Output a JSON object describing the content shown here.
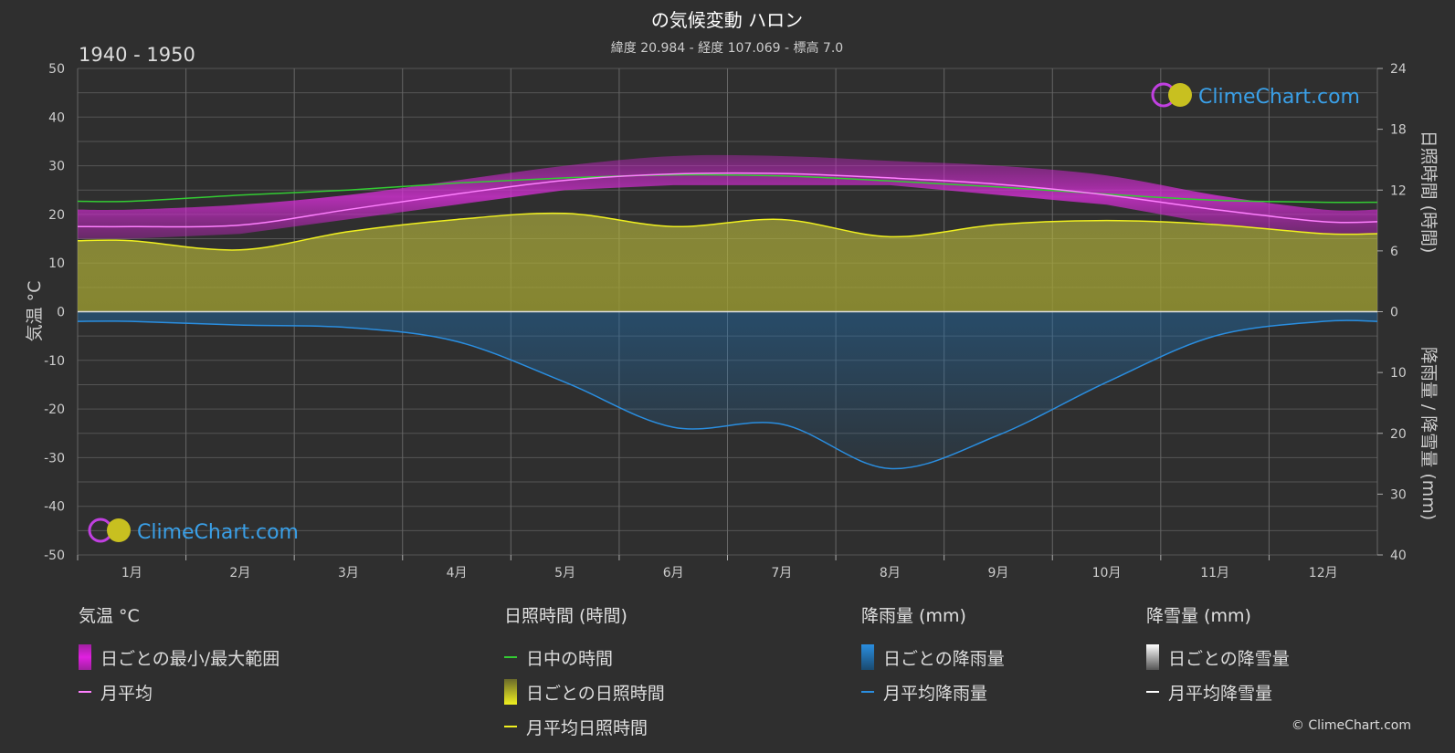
{
  "header": {
    "title": "の気候変動 ハロン",
    "subtitle": "緯度 20.984 - 経度 107.069 - 標高 7.0",
    "period": "1940 - 1950"
  },
  "watermark": "ClimeChart.com",
  "copyright": "© ClimeChart.com",
  "colors": {
    "background": "#2f2f2f",
    "temp_range": "#e020e0",
    "temp_avg": "#ff80ff",
    "daylight": "#33cc33",
    "sunshine_fill": "#b5b53a",
    "sunshine_avg": "#f0f020",
    "rain_fill": "#1f6fb0",
    "rain_avg": "#2a8ee0",
    "snow": "#ffffff"
  },
  "chart_data": {
    "type": "line",
    "categories": [
      "1月",
      "2月",
      "3月",
      "4月",
      "5月",
      "6月",
      "7月",
      "8月",
      "9月",
      "10月",
      "11月",
      "12月"
    ],
    "axes": {
      "left": {
        "label": "気温 °C",
        "ticks": [
          50,
          40,
          30,
          20,
          10,
          0,
          -10,
          -20,
          -30,
          -40,
          -50
        ],
        "range": [
          -50,
          50
        ]
      },
      "right_top": {
        "label": "日照時間 (時間)",
        "ticks": [
          24,
          18,
          12,
          6,
          0
        ],
        "range": [
          0,
          24
        ]
      },
      "right_bottom": {
        "label": "降雨量 / 降雪量 (mm)",
        "ticks": [
          0,
          10,
          20,
          30,
          40
        ],
        "range": [
          0,
          40
        ]
      }
    },
    "series": [
      {
        "name": "日中の時間",
        "unit": "時間",
        "values": [
          10.9,
          11.5,
          12.0,
          12.7,
          13.2,
          13.5,
          13.4,
          12.9,
          12.3,
          11.6,
          11.0,
          10.8
        ]
      },
      {
        "name": "月平均日照時間",
        "unit": "時間",
        "values": [
          7.0,
          6.1,
          7.9,
          9.1,
          9.7,
          8.4,
          9.1,
          7.4,
          8.6,
          9.0,
          8.6,
          7.7
        ]
      },
      {
        "name": "月平均",
        "unit": "°C",
        "values": [
          17.5,
          17.8,
          21.0,
          24.2,
          27.0,
          28.3,
          28.4,
          27.5,
          26.2,
          24.0,
          21.0,
          18.5
        ]
      },
      {
        "name": "日ごとの最小/最大範囲 (最小)",
        "unit": "°C",
        "values": [
          15,
          16,
          19,
          22,
          25,
          26,
          26,
          26,
          24,
          22,
          18,
          16
        ]
      },
      {
        "name": "日ごとの最小/最大範囲 (最大)",
        "unit": "°C",
        "values": [
          21,
          22,
          24,
          27,
          30,
          32,
          32,
          31,
          30,
          28,
          24,
          21
        ]
      },
      {
        "name": "月平均降雨量",
        "unit": "mm",
        "values": [
          1.6,
          2.2,
          2.6,
          4.9,
          11.6,
          19.0,
          18.5,
          25.8,
          20.3,
          11.6,
          4.0,
          1.6
        ]
      },
      {
        "name": "月平均降雪量",
        "unit": "mm",
        "values": [
          0,
          0,
          0,
          0,
          0,
          0,
          0,
          0,
          0,
          0,
          0,
          0
        ]
      }
    ],
    "grid": true
  },
  "legend": {
    "temp": {
      "title": "気温 °C",
      "items": [
        "日ごとの最小/最大範囲",
        "月平均"
      ]
    },
    "sun": {
      "title": "日照時間 (時間)",
      "items": [
        "日中の時間",
        "日ごとの日照時間",
        "月平均日照時間"
      ]
    },
    "rain": {
      "title": "降雨量 (mm)",
      "items": [
        "日ごとの降雨量",
        "月平均降雨量"
      ]
    },
    "snow": {
      "title": "降雪量 (mm)",
      "items": [
        "日ごとの降雪量",
        "月平均降雪量"
      ]
    }
  }
}
